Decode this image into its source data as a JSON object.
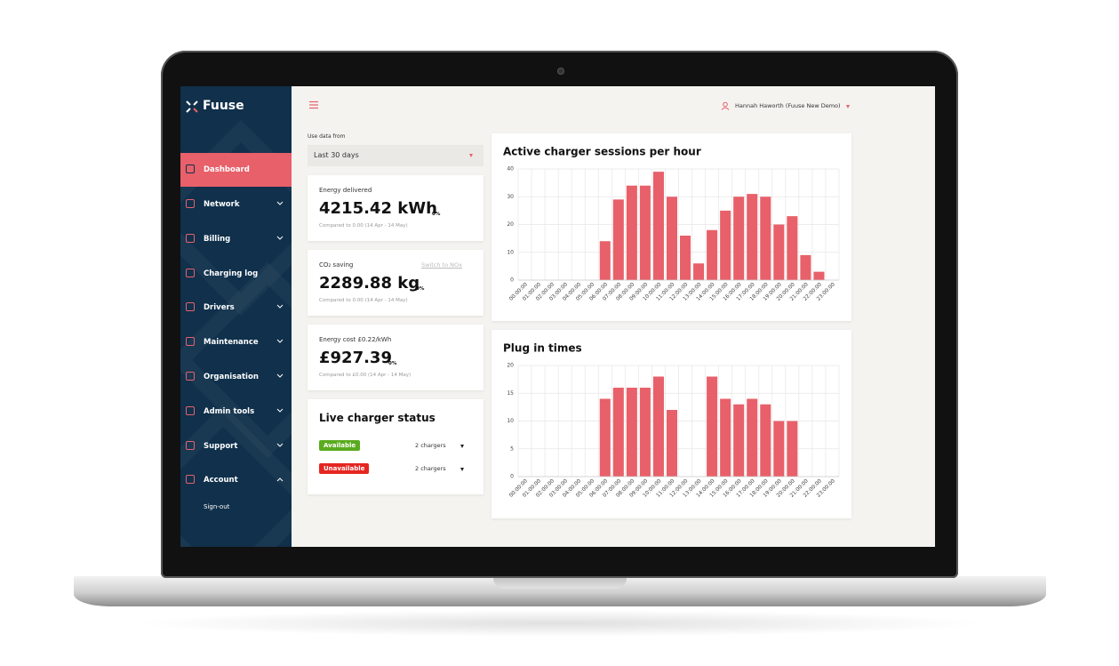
{
  "sidebar": {
    "logo": "Fuuse",
    "nav": [
      "Dashboard",
      "Network",
      "Billing",
      "Charging log",
      "Drivers",
      "Maintenance",
      "Organisation",
      "Admin tools",
      "Support",
      "Account"
    ],
    "sub": [
      "Sign-out"
    ]
  },
  "header": {
    "user": "Hannah Haworth (Fuuse New Demo)"
  },
  "filter": {
    "label": "Use data from",
    "value": "Last 30 days"
  },
  "stats": [
    {
      "title": "Energy delivered",
      "value": "4215.42 kWh",
      "change": "0%",
      "compare": "Compared to 0.00 (14 Apr - 14 May)"
    },
    {
      "title": "CO₂ saving",
      "link": "Switch to NOx",
      "value": "2289.88 kg",
      "change": "0%",
      "compare": "Compared to 0.00 (14 Apr - 14 May)"
    },
    {
      "title": "Energy cost £0.22/kWh",
      "value": "£927.39",
      "change": "0%",
      "compare": "Compared to £0.00 (14 Apr - 14 May)"
    }
  ],
  "status": {
    "title": "Live charger status",
    "rows": [
      {
        "label": "Available",
        "count": "2 chargers"
      },
      {
        "label": "Unavailable",
        "count": "2 chargers"
      }
    ]
  },
  "chart_data": [
    {
      "type": "bar",
      "title": "Active charger sessions per hour",
      "categories": [
        "00:00:00",
        "01:00:00",
        "02:00:00",
        "03:00:00",
        "04:00:00",
        "05:00:00",
        "06:00:00",
        "07:00:00",
        "08:00:00",
        "09:00:00",
        "10:00:00",
        "11:00:00",
        "12:00:00",
        "13:00:00",
        "14:00:00",
        "15:00:00",
        "16:00:00",
        "17:00:00",
        "18:00:00",
        "19:00:00",
        "20:00:00",
        "21:00:00",
        "22:00:00",
        "23:00:00"
      ],
      "values": [
        0,
        0,
        0,
        0,
        0,
        0,
        14,
        29,
        34,
        34,
        39,
        30,
        16,
        6,
        18,
        25,
        30,
        31,
        30,
        20,
        23,
        9,
        3,
        0
      ],
      "color": "#e8606a",
      "ylim": [
        0,
        40
      ],
      "yticks": [
        0,
        10,
        20,
        30,
        40
      ],
      "grid": true
    },
    {
      "type": "bar",
      "title": "Plug in times",
      "categories": [
        "00:00:00",
        "01:00:00",
        "02:00:00",
        "03:00:00",
        "04:00:00",
        "05:00:00",
        "06:00:00",
        "07:00:00",
        "08:00:00",
        "09:00:00",
        "10:00:00",
        "11:00:00",
        "12:00:00",
        "13:00:00",
        "14:00:00",
        "15:00:00",
        "16:00:00",
        "17:00:00",
        "18:00:00",
        "19:00:00",
        "20:00:00",
        "21:00:00",
        "22:00:00",
        "23:00:00"
      ],
      "values": [
        0,
        0,
        0,
        0,
        0,
        0,
        14,
        16,
        16,
        16,
        18,
        12,
        0,
        0,
        18,
        14,
        13,
        14,
        13,
        10,
        10,
        0,
        0,
        0
      ],
      "color": "#e8606a",
      "ylim": [
        0,
        20
      ],
      "yticks": [
        0,
        5,
        10,
        15,
        20
      ],
      "grid": true
    }
  ]
}
